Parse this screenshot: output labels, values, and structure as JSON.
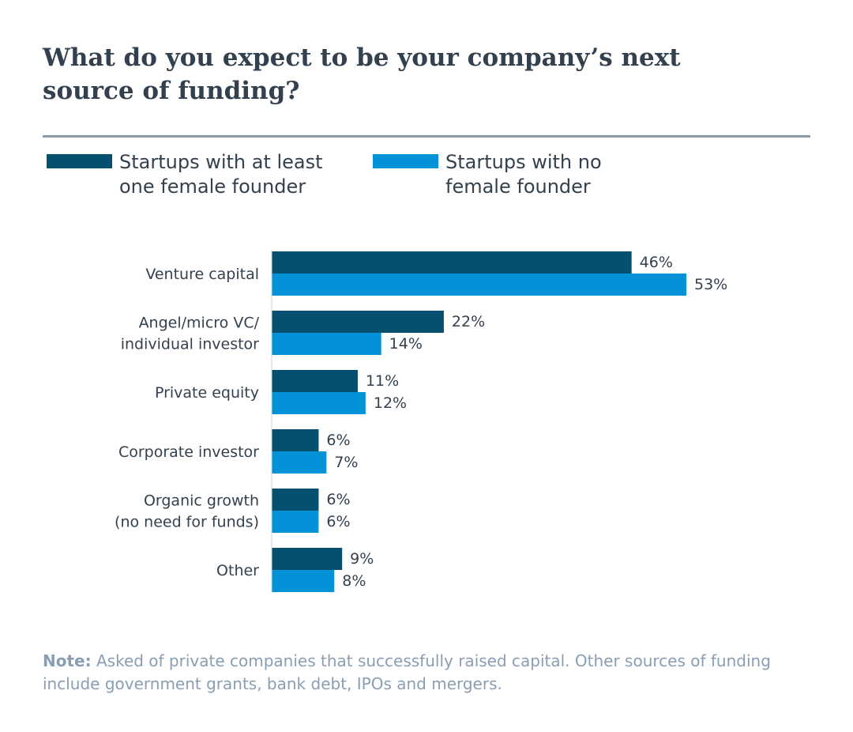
{
  "title": "What do you expect to be your company’s next source of funding?",
  "legend": [
    {
      "label": "Startups with at least\none female founder",
      "color": "#05506e"
    },
    {
      "label": "Startups with no\nfemale founder",
      "color": "#0392d8"
    }
  ],
  "note": {
    "prefix": "Note:",
    "text": " Asked of private companies that successfully raised capital. Other sources of funding include government grants, bank debt, IPOs and mergers."
  },
  "colors": {
    "dark": "#05506e",
    "light": "#0392d8",
    "text": "#33414f",
    "note": "#8a9eb3",
    "divider": "#8a9aa6"
  },
  "chart_data": {
    "type": "bar",
    "orientation": "horizontal",
    "title": "What do you expect to be your company’s next source of funding?",
    "categories": [
      [
        "Venture capital"
      ],
      [
        "Angel/micro VC/",
        "individual investor"
      ],
      [
        "Private equity"
      ],
      [
        "Corporate investor"
      ],
      [
        "Organic growth",
        "(no need for funds)"
      ],
      [
        "Other"
      ]
    ],
    "series": [
      {
        "name": "Startups with at least one female founder",
        "values": [
          46,
          22,
          11,
          6,
          6,
          9
        ],
        "labels": [
          "46%",
          "22%",
          "11%",
          "6%",
          "6%",
          "9%"
        ]
      },
      {
        "name": "Startups with no female founder",
        "values": [
          53,
          14,
          12,
          7,
          6,
          8
        ],
        "labels": [
          "53%",
          "14%",
          "12%",
          "7%",
          "6%",
          "8%"
        ]
      }
    ],
    "unit": "%",
    "xlim": [
      0,
      53
    ],
    "grid": false,
    "legend_position": "top-left"
  }
}
